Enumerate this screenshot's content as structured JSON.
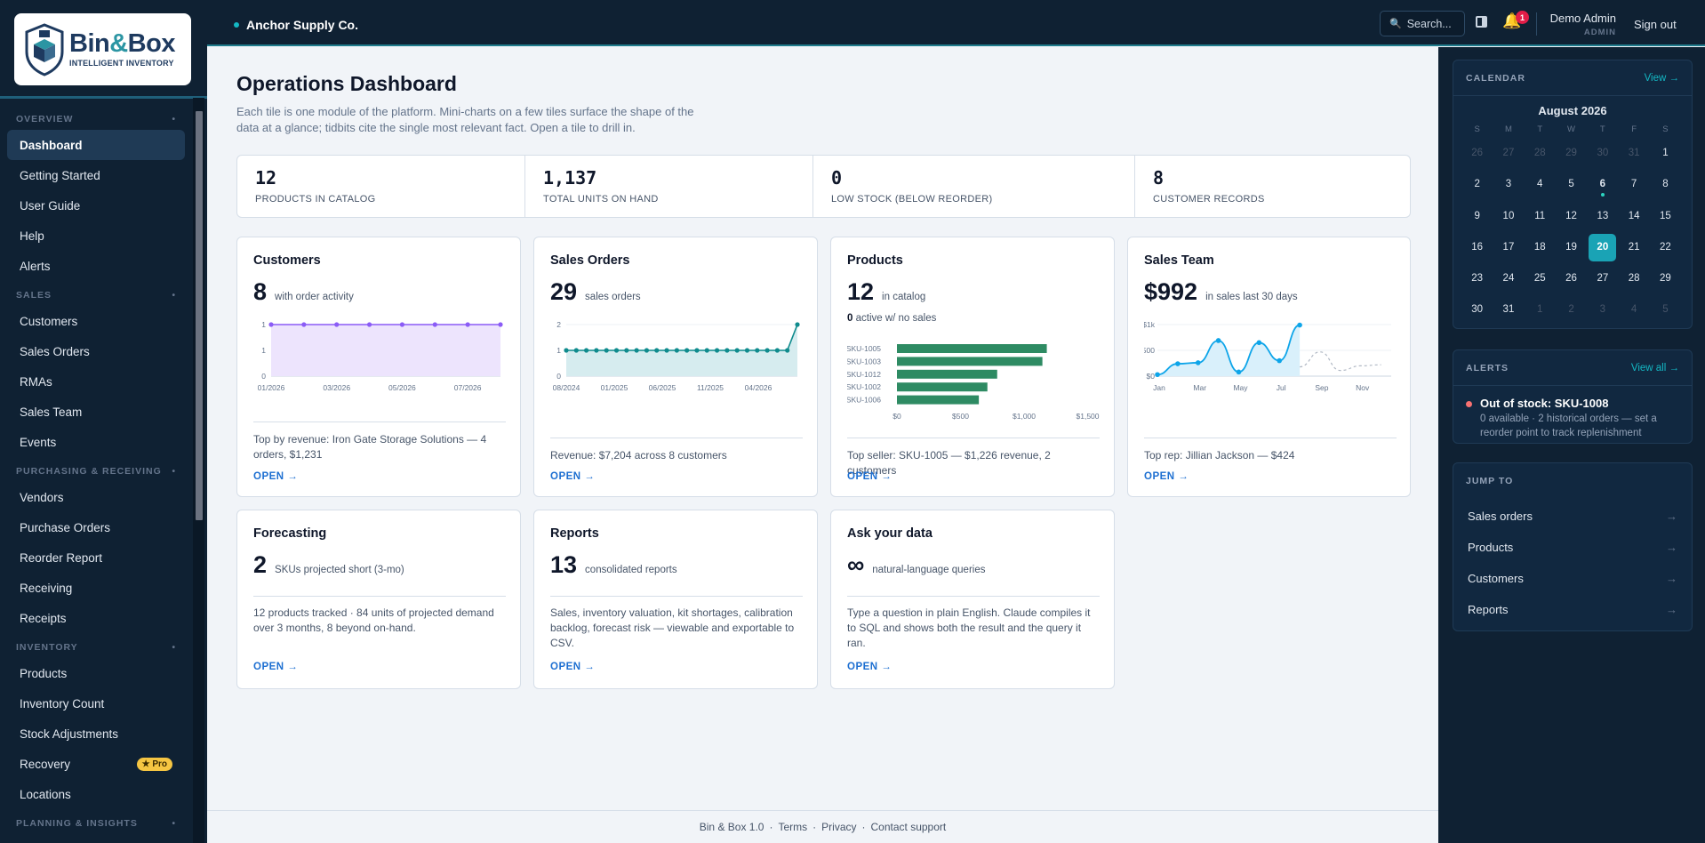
{
  "brand": {
    "name_part1": "Bin",
    "name_amp": "&",
    "name_part2": "Box",
    "tagline": "INTELLIGENT INVENTORY"
  },
  "topbar": {
    "org": "Anchor Supply Co.",
    "search_placeholder": "Search...",
    "notification_count": "1",
    "user_name": "Demo Admin",
    "user_role": "ADMIN",
    "sign_out": "Sign out"
  },
  "sidebar": {
    "overview": {
      "label": "OVERVIEW",
      "items": [
        "Dashboard",
        "Getting Started",
        "User Guide",
        "Help",
        "Alerts"
      ]
    },
    "sales": {
      "label": "SALES",
      "items": [
        "Customers",
        "Sales Orders",
        "RMAs",
        "Sales Team",
        "Events"
      ]
    },
    "purchasing": {
      "label": "PURCHASING & RECEIVING",
      "items": [
        "Vendors",
        "Purchase Orders",
        "Reorder Report",
        "Receiving",
        "Receipts"
      ]
    },
    "inventory": {
      "label": "INVENTORY",
      "items": [
        "Products",
        "Inventory Count",
        "Stock Adjustments",
        "Recovery",
        "Locations"
      ],
      "pro_badge": "★ Pro"
    },
    "planning": {
      "label": "PLANNING & INSIGHTS"
    }
  },
  "page": {
    "title": "Operations Dashboard",
    "description": "Each tile is one module of the platform. Mini-charts on a few tiles surface the shape of the data at a glance; tidbits cite the single most relevant fact. Open a tile to drill in."
  },
  "kpis": [
    {
      "value": "12",
      "label": "PRODUCTS IN CATALOG"
    },
    {
      "value": "1,137",
      "label": "TOTAL UNITS ON HAND"
    },
    {
      "value": "0",
      "label": "LOW STOCK (BELOW REORDER)"
    },
    {
      "value": "8",
      "label": "CUSTOMER RECORDS"
    }
  ],
  "tiles": {
    "customers": {
      "title": "Customers",
      "value": "8",
      "sub": "with order activity",
      "note": "Top by revenue: Iron Gate Storage Solutions — 4 orders, $1,231",
      "open": "OPEN →"
    },
    "sales_orders": {
      "title": "Sales Orders",
      "value": "29",
      "sub": "sales orders",
      "note": "Revenue: $7,204 across 8 customers",
      "open": "OPEN →"
    },
    "products": {
      "title": "Products",
      "value": "12",
      "sub": "in catalog",
      "sub2_value": "0",
      "sub2_text": " active w/ no sales",
      "note": "Top seller: SKU-1005 — $1,226 revenue, 2 customers",
      "open": "OPEN →"
    },
    "sales_team": {
      "title": "Sales Team",
      "value": "$992",
      "sub": "in sales last 30 days",
      "note": "Top rep: Jillian Jackson — $424",
      "open": "OPEN →"
    },
    "forecasting": {
      "title": "Forecasting",
      "value": "2",
      "sub": "SKUs projected short (3-mo)",
      "note": "12 products tracked · 84 units of projected demand over 3 months, 8 beyond on-hand.",
      "open": "OPEN →"
    },
    "reports": {
      "title": "Reports",
      "value": "13",
      "sub": "consolidated reports",
      "note": "Sales, inventory valuation, kit shortages, calibration backlog, forecast risk — viewable and exportable to CSV.",
      "open": "OPEN →"
    },
    "ask": {
      "title": "Ask your data",
      "value": "∞",
      "sub": "natural-language queries",
      "note": "Type a question in plain English. Claude compiles it to SQL and shows both the result and the query it ran.",
      "open": "OPEN →"
    }
  },
  "chart_data": [
    {
      "type": "area",
      "title": "Customers",
      "x": [
        "01/2026",
        "02/2026",
        "03/2026",
        "04/2026",
        "05/2026",
        "06/2026",
        "07/2026",
        "08/2026"
      ],
      "y_ticks": [
        "0",
        "1",
        "1"
      ],
      "x_tick_labels": [
        "01/2026",
        "03/2026",
        "05/2026",
        "07/2026"
      ],
      "series": [
        {
          "values": [
            1,
            1,
            1,
            1,
            1,
            1,
            1,
            1
          ]
        }
      ],
      "ylim": [
        0,
        1
      ],
      "color": "#8b5cf6"
    },
    {
      "type": "area",
      "title": "Sales Orders",
      "x_tick_labels": [
        "08/2024",
        "01/2025",
        "06/2025",
        "11/2025",
        "04/2026"
      ],
      "y_ticks": [
        "0",
        "1",
        "2"
      ],
      "series": [
        {
          "values": [
            1,
            1,
            1,
            1,
            1,
            1,
            1,
            1,
            1,
            1,
            1,
            1,
            1,
            1,
            1,
            1,
            1,
            1,
            1,
            1,
            1,
            1,
            1,
            2
          ]
        }
      ],
      "ylim": [
        0,
        2
      ],
      "color": "#0f8b8d"
    },
    {
      "type": "bar",
      "orientation": "horizontal",
      "title": "Products",
      "categories": [
        "SKU-1005",
        "SKU-1003",
        "SKU-1012",
        "SKU-1002",
        "SKU-1006"
      ],
      "values": [
        1226,
        1190,
        820,
        740,
        670
      ],
      "x_tick_labels": [
        "$0",
        "$500",
        "$1,000",
        "$1,500"
      ],
      "xlim": [
        0,
        1600
      ],
      "color": "#2e8b63"
    },
    {
      "type": "line",
      "title": "Sales Team",
      "x_tick_labels": [
        "Jan",
        "Mar",
        "May",
        "Jul",
        "Sep",
        "Nov"
      ],
      "y_tick_labels": [
        "$0",
        "$500",
        "$1k"
      ],
      "ylim": [
        0,
        1000
      ],
      "series": [
        {
          "name": "actual",
          "x": [
            1,
            2,
            3,
            4,
            5,
            6,
            7,
            8
          ],
          "values": [
            30,
            240,
            260,
            690,
            80,
            650,
            300,
            990
          ]
        },
        {
          "name": "projected",
          "dashed": true,
          "x": [
            8,
            9,
            10,
            11,
            12
          ],
          "values": [
            180,
            470,
            110,
            200,
            220
          ]
        }
      ],
      "color": "#0ea5e9"
    }
  ],
  "calendar": {
    "label": "CALENDAR",
    "view_link": "View →",
    "month": "August 2026",
    "weekdays": [
      "S",
      "M",
      "T",
      "W",
      "T",
      "F",
      "S"
    ],
    "days": [
      {
        "d": "26",
        "o": true
      },
      {
        "d": "27",
        "o": true
      },
      {
        "d": "28",
        "o": true
      },
      {
        "d": "29",
        "o": true
      },
      {
        "d": "30",
        "o": true
      },
      {
        "d": "31",
        "o": true
      },
      {
        "d": "1"
      },
      {
        "d": "2"
      },
      {
        "d": "3"
      },
      {
        "d": "4"
      },
      {
        "d": "5"
      },
      {
        "d": "6",
        "today": true
      },
      {
        "d": "7"
      },
      {
        "d": "8"
      },
      {
        "d": "9"
      },
      {
        "d": "10"
      },
      {
        "d": "11"
      },
      {
        "d": "12"
      },
      {
        "d": "13"
      },
      {
        "d": "14"
      },
      {
        "d": "15"
      },
      {
        "d": "16"
      },
      {
        "d": "17"
      },
      {
        "d": "18"
      },
      {
        "d": "19"
      },
      {
        "d": "20",
        "sel": true
      },
      {
        "d": "21"
      },
      {
        "d": "22"
      },
      {
        "d": "23"
      },
      {
        "d": "24"
      },
      {
        "d": "25"
      },
      {
        "d": "26"
      },
      {
        "d": "27"
      },
      {
        "d": "28"
      },
      {
        "d": "29"
      },
      {
        "d": "30"
      },
      {
        "d": "31"
      },
      {
        "d": "1",
        "o": true
      },
      {
        "d": "2",
        "o": true
      },
      {
        "d": "3",
        "o": true
      },
      {
        "d": "4",
        "o": true
      },
      {
        "d": "5",
        "o": true
      }
    ]
  },
  "alerts": {
    "label": "ALERTS",
    "view_all": "View all →",
    "item_title": "Out of stock: SKU-1008",
    "item_detail": "0 available · 2 historical orders — set a reorder point to track replenishment"
  },
  "jump_to": {
    "label": "JUMP TO",
    "items": [
      "Sales orders",
      "Products",
      "Customers",
      "Reports"
    ],
    "arrow": "→"
  },
  "footer": {
    "version": "Bin & Box 1.0",
    "terms": "Terms",
    "privacy": "Privacy",
    "support": "Contact support",
    "sep": "·"
  }
}
